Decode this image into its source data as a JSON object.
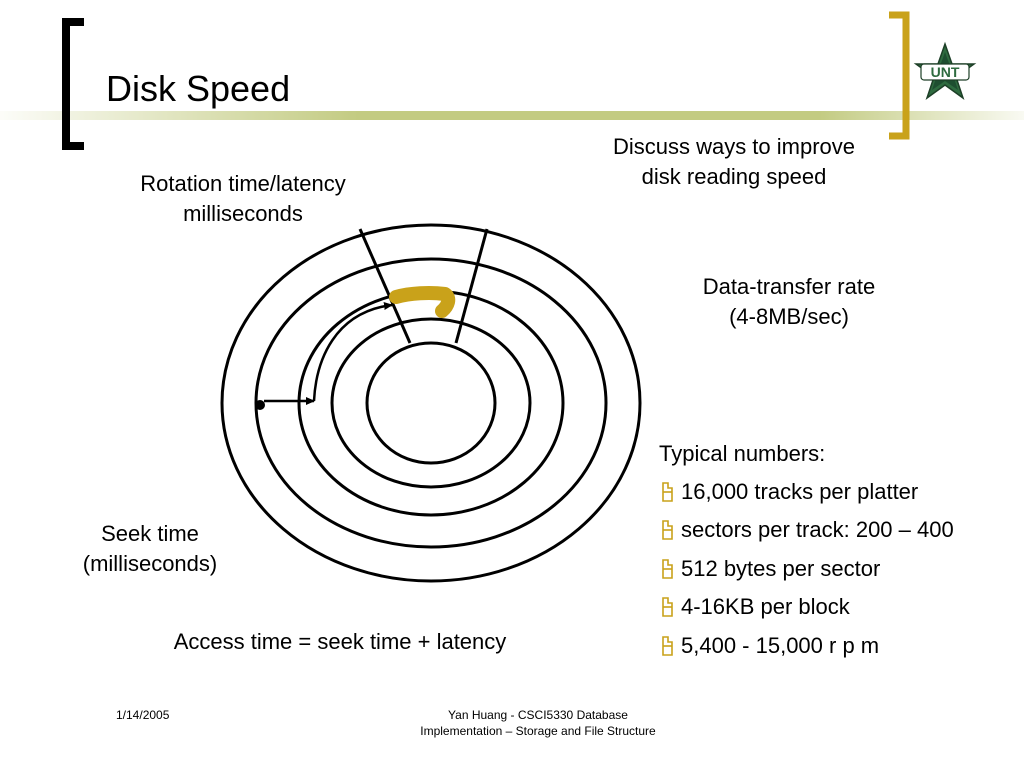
{
  "slide": {
    "title": "Disk Speed",
    "accent_color": "#c9a21a",
    "olive_bar_color": "#c3cb82",
    "logo_alt": "UNT"
  },
  "labels": {
    "discuss": [
      "Discuss ways to improve",
      "disk reading speed"
    ],
    "rotation": [
      "Rotation time/latency",
      "milliseconds"
    ],
    "transfer": [
      "Data-transfer rate",
      "(4-8MB/sec)"
    ],
    "seek": [
      "Seek time",
      "(milliseconds)"
    ],
    "access": "Access time = seek time + latency"
  },
  "typical": {
    "title": "Typical numbers:",
    "items": [
      "16,000 tracks per platter",
      "sectors per track: 200 – 400",
      "512 bytes per sector",
      "4-16KB per block",
      "5,400 -  15,000 r p m"
    ]
  },
  "footer": {
    "date": "1/14/2005",
    "credit": [
      "Yan Huang - CSCI5330 Database",
      "Implementation – Storage and File Structure"
    ]
  }
}
